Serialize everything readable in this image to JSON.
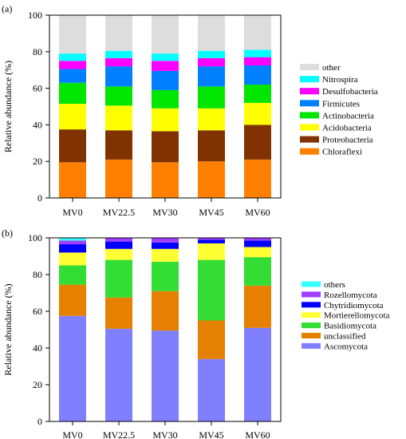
{
  "chart_data": [
    {
      "panel_label": "(a)",
      "type": "bar",
      "stacked": true,
      "categories": [
        "MV0",
        "MV22.5",
        "MV30",
        "MV45",
        "MV60"
      ],
      "ylabel": "Relative abundance (%)",
      "ylim": [
        0,
        100
      ],
      "yticks": [
        "0",
        "20",
        "40",
        "60",
        "80",
        "100"
      ],
      "legend_position": "right",
      "series": [
        {
          "name": "Chloraflexi",
          "color": "#ff8000",
          "values": [
            19.5,
            21,
            19.5,
            20,
            21
          ]
        },
        {
          "name": "Proteobacteria",
          "color": "#803300",
          "values": [
            18,
            16,
            17,
            17,
            19
          ]
        },
        {
          "name": "Acidobacteria",
          "color": "#ffff00",
          "values": [
            14,
            13.5,
            12.5,
            12,
            12
          ]
        },
        {
          "name": "Actinobacteria",
          "color": "#00e600",
          "values": [
            11.5,
            10.5,
            10,
            12,
            10
          ]
        },
        {
          "name": "Firmicutes",
          "color": "#0080ff",
          "values": [
            7.5,
            11,
            10.5,
            11,
            10.5
          ]
        },
        {
          "name": "Desulfobacteria",
          "color": "#ff00ff",
          "values": [
            4.5,
            4.5,
            5.5,
            4.5,
            4.5
          ]
        },
        {
          "name": "Nitrospira",
          "color": "#00ffff",
          "values": [
            4,
            4,
            4,
            4,
            4
          ]
        },
        {
          "name": "other",
          "color": "#dddddd",
          "values": [
            21,
            19.5,
            21,
            19.5,
            19
          ]
        }
      ]
    },
    {
      "panel_label": "(b)",
      "type": "bar",
      "stacked": true,
      "categories": [
        "MV0",
        "MV22.5",
        "MV30",
        "MV45",
        "MV60"
      ],
      "ylabel": "Relative abundance (%)",
      "ylim": [
        0,
        100
      ],
      "yticks": [
        "0",
        "20",
        "40",
        "60",
        "80",
        "100"
      ],
      "legend_position": "right",
      "series": [
        {
          "name": "Ascomycota",
          "color": "#8080ff",
          "values": [
            57.5,
            50.5,
            49.5,
            34,
            51
          ]
        },
        {
          "name": "unclassified",
          "color": "#e68000",
          "values": [
            17,
            17,
            21.5,
            21,
            23
          ]
        },
        {
          "name": "Basidiomycota",
          "color": "#33dd33",
          "values": [
            10.5,
            20.5,
            16,
            33,
            15.5
          ]
        },
        {
          "name": "Mortierellomycota",
          "color": "#ffff33",
          "values": [
            7,
            6,
            7,
            9,
            5.5
          ]
        },
        {
          "name": "Chytridiomycota",
          "color": "#0000ff",
          "values": [
            4.5,
            4,
            3.5,
            2,
            3.5
          ]
        },
        {
          "name": "Rozellomycota",
          "color": "#a040ff",
          "values": [
            2,
            2,
            2.5,
            1,
            1.5
          ]
        },
        {
          "name": "others",
          "color": "#33ffff",
          "values": [
            1.5,
            0,
            0,
            0,
            0
          ]
        }
      ]
    }
  ]
}
